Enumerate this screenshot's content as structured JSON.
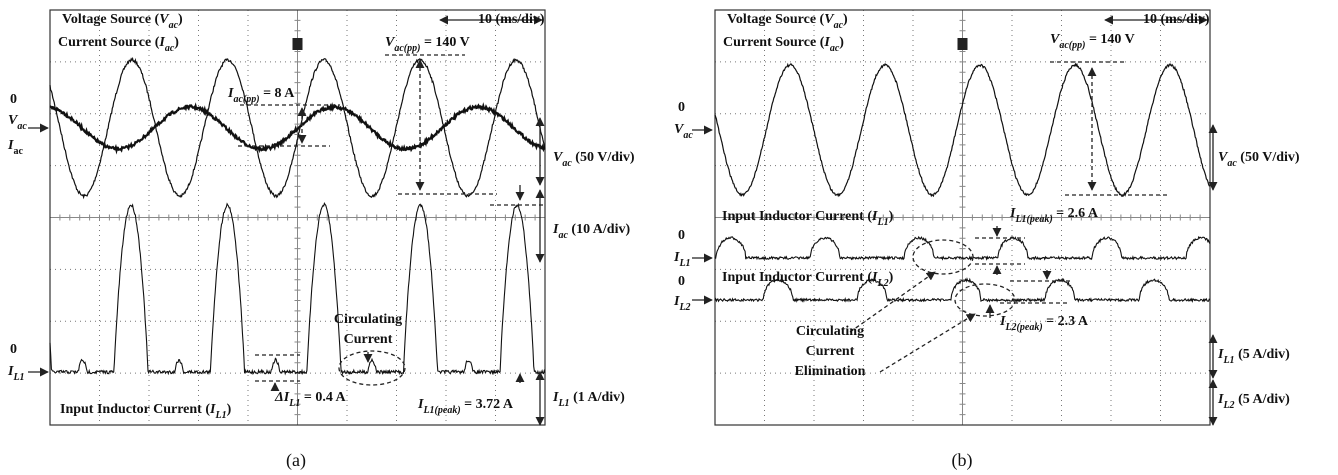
{
  "panels": [
    {
      "labels": [
        {
          "parts": [
            {
              "text": "Voltage Source ("
            },
            {
              "text": "V",
              "italic": true
            },
            {
              "text": "ac",
              "italic": true,
              "sub": true
            },
            {
              "text": ")"
            }
          ]
        },
        {
          "parts": [
            {
              "text": "Current Source ("
            },
            {
              "text": "I",
              "italic": true
            },
            {
              "text": "ac",
              "italic": true,
              "sub": true
            },
            {
              "text": ")"
            }
          ]
        },
        {
          "parts": [
            {
              "text": "10 (ms/div)"
            }
          ]
        },
        {
          "parts": [
            {
              "text": "V",
              "italic": true
            },
            {
              "text": "ac(pp)",
              "italic": true,
              "sub": true
            },
            {
              "text": " = 140 V"
            }
          ]
        },
        {
          "parts": [
            {
              "text": "I",
              "italic": true
            },
            {
              "text": "ac(pp)",
              "italic": true,
              "sub": true
            },
            {
              "text": " = 8 A"
            }
          ]
        },
        {
          "parts": [
            {
              "text": "0"
            }
          ]
        },
        {
          "parts": [
            {
              "text": "V",
              "italic": true
            },
            {
              "text": "ac",
              "italic": true,
              "sub": true
            }
          ]
        },
        {
          "parts": [
            {
              "text": "I",
              "italic": true
            },
            {
              "text": "ac",
              "sub": true
            }
          ]
        },
        {
          "parts": [
            {
              "text": "V",
              "italic": true
            },
            {
              "text": "ac",
              "italic": true,
              "sub": true
            },
            {
              "text": " (50 V/div)"
            }
          ]
        },
        {
          "parts": [
            {
              "text": "I",
              "italic": true
            },
            {
              "text": "ac",
              "italic": true,
              "sub": true
            },
            {
              "text": " (10 A/div)"
            }
          ]
        },
        {
          "parts": [
            {
              "text": "Circulating"
            }
          ]
        },
        {
          "parts": [
            {
              "text": "Current"
            }
          ]
        },
        {
          "parts": [
            {
              "text": "0"
            }
          ]
        },
        {
          "parts": [
            {
              "text": "I",
              "italic": true
            },
            {
              "text": "L1",
              "italic": true,
              "sub": true
            }
          ]
        },
        {
          "parts": [
            {
              "text": "Input Inductor Current ("
            },
            {
              "text": "I",
              "italic": true
            },
            {
              "text": "L1",
              "italic": true,
              "sub": true
            },
            {
              "text": ")"
            }
          ]
        },
        {
          "parts": [
            {
              "text": "ΔI",
              "italic": true
            },
            {
              "text": "L1",
              "italic": true,
              "sub": true
            },
            {
              "text": " = 0.4 A"
            }
          ]
        },
        {
          "parts": [
            {
              "text": "I",
              "italic": true
            },
            {
              "text": "L1(peak)",
              "italic": true,
              "sub": true
            },
            {
              "text": " = 3.72 A"
            }
          ]
        },
        {
          "parts": [
            {
              "text": "I",
              "italic": true
            },
            {
              "text": "L1",
              "italic": true,
              "sub": true
            },
            {
              "text": " (1 A/div)"
            }
          ]
        }
      ],
      "caption": "(a)"
    },
    {
      "labels": [
        {
          "parts": [
            {
              "text": "Voltage Source ("
            },
            {
              "text": "V",
              "italic": true
            },
            {
              "text": "ac",
              "italic": true,
              "sub": true
            },
            {
              "text": ")"
            }
          ]
        },
        {
          "parts": [
            {
              "text": "Current Source ("
            },
            {
              "text": "I",
              "italic": true
            },
            {
              "text": "ac",
              "italic": true,
              "sub": true
            },
            {
              "text": ")"
            }
          ]
        },
        {
          "parts": [
            {
              "text": "10 (ms/div)"
            }
          ]
        },
        {
          "parts": [
            {
              "text": "V",
              "italic": true
            },
            {
              "text": "ac(pp)",
              "italic": true,
              "sub": true
            },
            {
              "text": " = 140 V"
            }
          ]
        },
        {
          "parts": [
            {
              "text": "0"
            }
          ]
        },
        {
          "parts": [
            {
              "text": "V",
              "italic": true
            },
            {
              "text": "ac",
              "italic": true,
              "sub": true
            }
          ]
        },
        {
          "parts": [
            {
              "text": "V",
              "italic": true
            },
            {
              "text": "ac",
              "italic": true,
              "sub": true
            },
            {
              "text": " (50 V/div)"
            }
          ]
        },
        {
          "parts": [
            {
              "text": "Input Inductor Current ("
            },
            {
              "text": "I",
              "italic": true
            },
            {
              "text": "L1",
              "italic": true,
              "sub": true
            },
            {
              "text": ")"
            }
          ]
        },
        {
          "parts": [
            {
              "text": "I",
              "italic": true
            },
            {
              "text": "L1(peak)",
              "italic": true,
              "sub": true
            },
            {
              "text": " = 2.6 A"
            }
          ]
        },
        {
          "parts": [
            {
              "text": "0"
            }
          ]
        },
        {
          "parts": [
            {
              "text": "I",
              "italic": true
            },
            {
              "text": "L1",
              "italic": true,
              "sub": true
            }
          ]
        },
        {
          "parts": [
            {
              "text": "Input Inductor Current ("
            },
            {
              "text": "I",
              "italic": true
            },
            {
              "text": "L2",
              "italic": true,
              "sub": true
            },
            {
              "text": ")"
            }
          ]
        },
        {
          "parts": [
            {
              "text": "0"
            }
          ]
        },
        {
          "parts": [
            {
              "text": "I",
              "italic": true
            },
            {
              "text": "L2",
              "italic": true,
              "sub": true
            }
          ]
        },
        {
          "parts": [
            {
              "text": "I",
              "italic": true
            },
            {
              "text": "L2(peak)",
              "italic": true,
              "sub": true
            },
            {
              "text": " = 2.3 A"
            }
          ]
        },
        {
          "parts": [
            {
              "text": "Circulating"
            }
          ]
        },
        {
          "parts": [
            {
              "text": "Current"
            }
          ]
        },
        {
          "parts": [
            {
              "text": "Elimination"
            }
          ]
        },
        {
          "parts": [
            {
              "text": "I",
              "italic": true
            },
            {
              "text": "L1",
              "italic": true,
              "sub": true
            },
            {
              "text": " (5 A/div)"
            }
          ]
        },
        {
          "parts": [
            {
              "text": "I",
              "italic": true
            },
            {
              "text": "L2",
              "italic": true,
              "sub": true
            },
            {
              "text": " (5 A/div)"
            }
          ]
        }
      ],
      "caption": "(b)"
    }
  ]
}
